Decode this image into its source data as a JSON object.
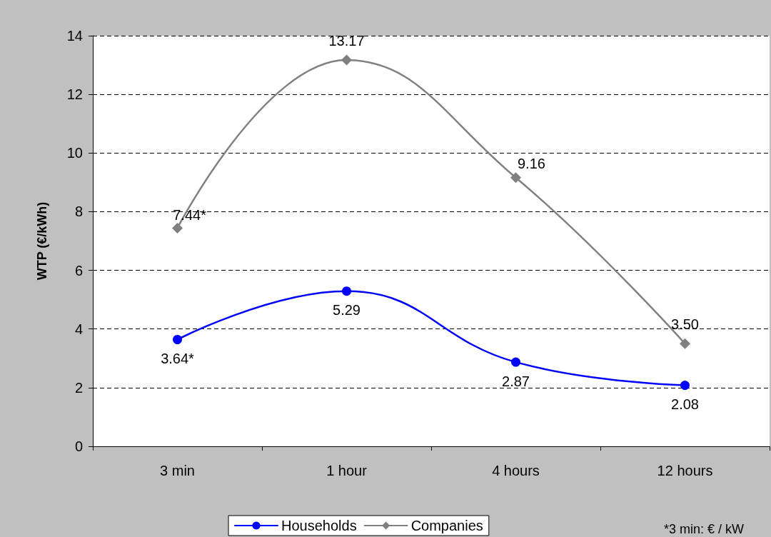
{
  "chart_data": {
    "type": "line",
    "ylabel": "WTP (€/kWh)",
    "categories": [
      "3 min",
      "1 hour",
      "4 hours",
      "12 hours"
    ],
    "series": [
      {
        "name": "Households",
        "color": "#0000ff",
        "marker": "circle",
        "values": [
          3.64,
          5.29,
          2.87,
          2.08
        ],
        "value_labels": [
          "3.64*",
          "5.29",
          "2.87",
          "2.08"
        ]
      },
      {
        "name": "Companies",
        "color": "#808080",
        "marker": "diamond",
        "values": [
          7.44,
          13.17,
          9.16,
          3.5
        ],
        "value_labels": [
          "7.44*",
          "13.17",
          "9.16",
          "3.50"
        ]
      }
    ],
    "ylim": [
      0,
      14
    ],
    "yticks": [
      0,
      2,
      4,
      6,
      8,
      10,
      12,
      14
    ],
    "grid": "y",
    "legend": "bottom",
    "annotations": [
      "*3 min: € / kW"
    ]
  }
}
